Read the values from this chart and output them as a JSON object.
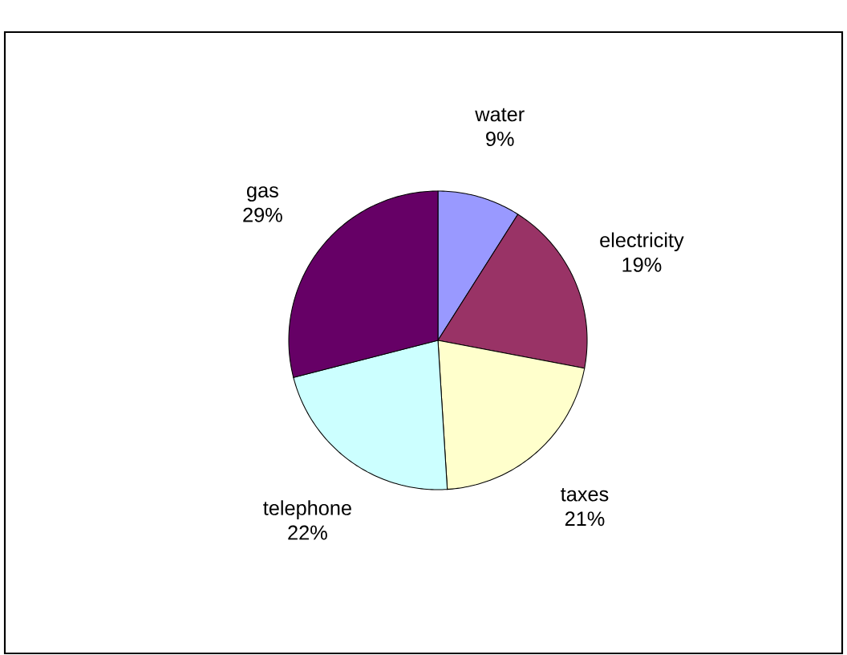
{
  "chart_data": {
    "type": "pie",
    "categories": [
      "water",
      "electricity",
      "taxes",
      "telephone",
      "gas"
    ],
    "values": [
      9,
      19,
      21,
      22,
      29
    ],
    "value_labels": [
      "9%",
      "19%",
      "21%",
      "22%",
      "29%"
    ],
    "colors": [
      "#9999ff",
      "#993366",
      "#ffffcc",
      "#ccffff",
      "#660066"
    ]
  }
}
